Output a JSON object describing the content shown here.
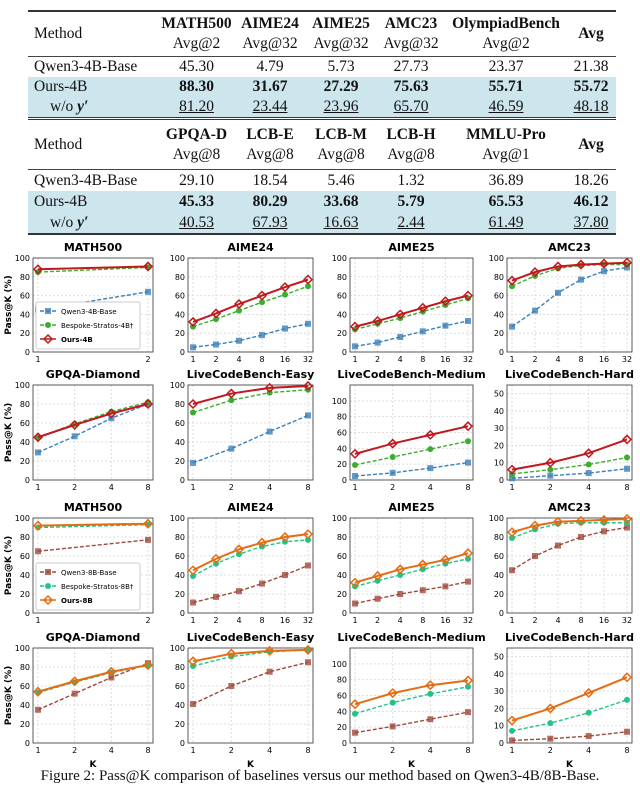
{
  "table1": {
    "method_label": "Method",
    "columns": [
      {
        "name": "MATH500",
        "metric": "Avg@2"
      },
      {
        "name": "AIME24",
        "metric": "Avg@32"
      },
      {
        "name": "AIME25",
        "metric": "Avg@32"
      },
      {
        "name": "AMC23",
        "metric": "Avg@32"
      },
      {
        "name": "OlympiadBench",
        "metric": "Avg@2"
      },
      {
        "name": "Avg",
        "metric": ""
      }
    ],
    "rows": [
      {
        "method": "Qwen3-4B-Base",
        "values": [
          "45.30",
          "4.79",
          "5.73",
          "27.73",
          "23.37",
          "21.38"
        ],
        "style": "plain"
      },
      {
        "method": "Ours-4B",
        "values": [
          "88.30",
          "31.67",
          "27.29",
          "75.63",
          "55.71",
          "55.72"
        ],
        "style": "bold"
      },
      {
        "method": "w/o",
        "method_var": "y′",
        "values": [
          "81.20",
          "23.44",
          "23.96",
          "65.70",
          "46.59",
          "48.18"
        ],
        "style": "underline"
      }
    ]
  },
  "table2": {
    "method_label": "Method",
    "columns": [
      {
        "name": "GPQA-D",
        "metric": "Avg@8"
      },
      {
        "name": "LCB-E",
        "metric": "Avg@8"
      },
      {
        "name": "LCB-M",
        "metric": "Avg@8"
      },
      {
        "name": "LCB-H",
        "metric": "Avg@8"
      },
      {
        "name": "MMLU-Pro",
        "metric": "Avg@1"
      },
      {
        "name": "Avg",
        "metric": ""
      }
    ],
    "rows": [
      {
        "method": "Qwen3-4B-Base",
        "values": [
          "29.10",
          "18.54",
          "5.46",
          "1.32",
          "36.89",
          "18.26"
        ],
        "style": "plain"
      },
      {
        "method": "Ours-4B",
        "values": [
          "45.33",
          "80.29",
          "33.68",
          "5.79",
          "65.53",
          "46.12"
        ],
        "style": "bold"
      },
      {
        "method": "w/o",
        "method_var": "y′",
        "values": [
          "40.53",
          "67.93",
          "16.63",
          "2.44",
          "61.49",
          "37.80"
        ],
        "style": "underline"
      }
    ]
  },
  "colors": {
    "qwen4b": "#3b80b8",
    "bespoke4b": "#3cae2e",
    "ours4b": "#c1181d",
    "qwen8b": "#a0483b",
    "bespoke8b": "#22c384",
    "ours8b": "#e46c12",
    "highlight": "#cde6ee"
  },
  "chart_data": [
    {
      "type": "line",
      "title": "MATH500",
      "ylabel": "Pass@K (%)",
      "xlabel": "",
      "x": [
        1,
        2
      ],
      "ylim": [
        0,
        100
      ],
      "yticks": [
        0,
        20,
        40,
        60,
        80,
        100
      ],
      "grid": true,
      "legend": "bottom-left",
      "series": [
        {
          "name": "Qwen3-4B-Base",
          "values": [
            45,
            64
          ]
        },
        {
          "name": "Bespoke-Stratos-4B†",
          "values": [
            85,
            90
          ]
        },
        {
          "name": "Ours-4B",
          "values": [
            88,
            91
          ]
        }
      ]
    },
    {
      "type": "line",
      "title": "AIME24",
      "x": [
        1,
        2,
        4,
        8,
        16,
        32
      ],
      "ylim": [
        0,
        100
      ],
      "yticks": [
        0,
        20,
        40,
        60,
        80,
        100
      ],
      "grid": true,
      "series": [
        {
          "values": [
            5,
            8,
            12,
            18,
            25,
            30
          ]
        },
        {
          "values": [
            27,
            35,
            44,
            53,
            61,
            70
          ]
        },
        {
          "values": [
            32,
            41,
            51,
            60,
            69,
            77
          ]
        }
      ]
    },
    {
      "type": "line",
      "title": "AIME25",
      "x": [
        1,
        2,
        4,
        8,
        16,
        32
      ],
      "ylim": [
        0,
        100
      ],
      "yticks": [
        0,
        20,
        40,
        60,
        80,
        100
      ],
      "grid": true,
      "series": [
        {
          "values": [
            6,
            10,
            16,
            22,
            28,
            33
          ]
        },
        {
          "values": [
            24,
            30,
            36,
            43,
            50,
            57
          ]
        },
        {
          "values": [
            27,
            33,
            40,
            47,
            54,
            60
          ]
        }
      ]
    },
    {
      "type": "line",
      "title": "AMC23",
      "x": [
        1,
        2,
        4,
        8,
        16,
        32
      ],
      "ylim": [
        0,
        100
      ],
      "yticks": [
        0,
        20,
        40,
        60,
        80,
        100
      ],
      "grid": true,
      "series": [
        {
          "values": [
            27,
            44,
            63,
            77,
            86,
            90
          ]
        },
        {
          "values": [
            70,
            81,
            89,
            92,
            93,
            93
          ]
        },
        {
          "values": [
            76,
            85,
            91,
            93,
            94,
            95
          ]
        }
      ]
    },
    {
      "type": "line",
      "title": "GPQA-Diamond",
      "ylabel": "Pass@K (%)",
      "x": [
        1,
        2,
        4,
        8
      ],
      "ylim": [
        0,
        100
      ],
      "yticks": [
        0,
        20,
        40,
        60,
        80,
        100
      ],
      "grid": true,
      "series": [
        {
          "values": [
            29,
            46,
            65,
            80
          ]
        },
        {
          "values": [
            45,
            59,
            72,
            82
          ]
        },
        {
          "values": [
            45,
            58,
            70,
            80
          ]
        }
      ]
    },
    {
      "type": "line",
      "title": "LiveCodeBench-Easy",
      "x": [
        1,
        2,
        4,
        8
      ],
      "ylim": [
        0,
        100
      ],
      "yticks": [
        0,
        20,
        40,
        60,
        80,
        100
      ],
      "grid": true,
      "series": [
        {
          "values": [
            18,
            33,
            51,
            68
          ]
        },
        {
          "values": [
            71,
            84,
            92,
            95
          ]
        },
        {
          "values": [
            80,
            91,
            97,
            99
          ]
        }
      ]
    },
    {
      "type": "line",
      "title": "LiveCodeBench-Medium",
      "x": [
        1,
        2,
        4,
        8
      ],
      "ylim": [
        0,
        120
      ],
      "yticks": [
        0,
        20,
        40,
        60,
        80,
        100
      ],
      "grid": true,
      "series": [
        {
          "values": [
            5,
            9,
            15,
            22
          ]
        },
        {
          "values": [
            19,
            29,
            39,
            49
          ]
        },
        {
          "values": [
            33,
            46,
            57,
            68
          ]
        }
      ]
    },
    {
      "type": "line",
      "title": "LiveCodeBench-Hard",
      "x": [
        1,
        2,
        4,
        8
      ],
      "ylim": [
        0,
        55
      ],
      "yticks": [
        0,
        10,
        20,
        30,
        40,
        50
      ],
      "grid": true,
      "series": [
        {
          "values": [
            1,
            2.5,
            4,
            6.5
          ]
        },
        {
          "values": [
            3.5,
            6,
            9,
            13
          ]
        },
        {
          "values": [
            6,
            10,
            15.5,
            23.5
          ]
        }
      ]
    },
    {
      "type": "line",
      "title": "MATH500",
      "ylabel": "Pass@K (%)",
      "x": [
        1,
        2
      ],
      "ylim": [
        0,
        100
      ],
      "yticks": [
        0,
        20,
        40,
        60,
        80,
        100
      ],
      "grid": true,
      "legend": "bottom-left",
      "series": [
        {
          "name": "Qwen3-8B-Base",
          "values": [
            65,
            77
          ]
        },
        {
          "name": "Bespoke-Stratos-8B†",
          "values": [
            90,
            93
          ]
        },
        {
          "name": "Ours-8B",
          "values": [
            92,
            94
          ]
        }
      ]
    },
    {
      "type": "line",
      "title": "AIME24",
      "x": [
        1,
        2,
        4,
        8,
        16,
        32
      ],
      "ylim": [
        0,
        100
      ],
      "yticks": [
        0,
        20,
        40,
        60,
        80,
        100
      ],
      "grid": true,
      "series": [
        {
          "values": [
            11,
            17,
            23,
            31,
            40,
            50
          ]
        },
        {
          "values": [
            39,
            52,
            62,
            70,
            75,
            77
          ]
        },
        {
          "values": [
            45,
            57,
            67,
            74,
            80,
            83
          ]
        }
      ]
    },
    {
      "type": "line",
      "title": "AIME25",
      "x": [
        1,
        2,
        4,
        8,
        16,
        32
      ],
      "ylim": [
        0,
        100
      ],
      "yticks": [
        0,
        20,
        40,
        60,
        80,
        100
      ],
      "grid": true,
      "series": [
        {
          "values": [
            10,
            15,
            20,
            24,
            28,
            33
          ]
        },
        {
          "values": [
            28,
            34,
            40,
            46,
            52,
            57
          ]
        },
        {
          "values": [
            32,
            39,
            46,
            51,
            56,
            63
          ]
        }
      ]
    },
    {
      "type": "line",
      "title": "AMC23",
      "x": [
        1,
        2,
        4,
        8,
        16,
        32
      ],
      "ylim": [
        0,
        100
      ],
      "yticks": [
        0,
        20,
        40,
        60,
        80,
        100
      ],
      "grid": true,
      "series": [
        {
          "values": [
            45,
            60,
            71,
            80,
            86,
            90
          ]
        },
        {
          "values": [
            79,
            88,
            94,
            95,
            95,
            95
          ]
        },
        {
          "values": [
            85,
            92,
            96,
            97,
            98,
            99
          ]
        }
      ]
    },
    {
      "type": "line",
      "title": "GPQA-Diamond",
      "ylabel": "Pass@K (%)",
      "xlabel": "K",
      "x": [
        1,
        2,
        4,
        8
      ],
      "ylim": [
        0,
        100
      ],
      "yticks": [
        0,
        20,
        40,
        60,
        80,
        100
      ],
      "grid": true,
      "series": [
        {
          "values": [
            35,
            52,
            69,
            84
          ]
        },
        {
          "values": [
            53,
            64,
            74,
            82
          ]
        },
        {
          "values": [
            54,
            65,
            75,
            82
          ]
        }
      ]
    },
    {
      "type": "line",
      "title": "LiveCodeBench-Easy",
      "xlabel": "K",
      "x": [
        1,
        2,
        4,
        8
      ],
      "ylim": [
        0,
        100
      ],
      "yticks": [
        0,
        20,
        40,
        60,
        80,
        100
      ],
      "grid": true,
      "series": [
        {
          "values": [
            41,
            60,
            75,
            85
          ]
        },
        {
          "values": [
            81,
            91,
            96,
            98
          ]
        },
        {
          "values": [
            86,
            94,
            97,
            98
          ]
        }
      ]
    },
    {
      "type": "line",
      "title": "LiveCodeBench-Medium",
      "xlabel": "K",
      "x": [
        1,
        2,
        4,
        8
      ],
      "ylim": [
        0,
        120
      ],
      "yticks": [
        0,
        20,
        40,
        60,
        80,
        100
      ],
      "grid": true,
      "series": [
        {
          "values": [
            13,
            21,
            30,
            39
          ]
        },
        {
          "values": [
            37,
            51,
            62,
            71
          ]
        },
        {
          "values": [
            49,
            63,
            73,
            79
          ]
        }
      ]
    },
    {
      "type": "line",
      "title": "LiveCodeBench-Hard",
      "xlabel": "K",
      "x": [
        1,
        2,
        4,
        8
      ],
      "ylim": [
        0,
        55
      ],
      "yticks": [
        0,
        10,
        20,
        30,
        40,
        50
      ],
      "grid": true,
      "series": [
        {
          "values": [
            1.5,
            2.5,
            4,
            6.5
          ]
        },
        {
          "values": [
            7,
            11.5,
            17.5,
            25
          ]
        },
        {
          "values": [
            13,
            20,
            29,
            38
          ]
        }
      ]
    }
  ],
  "caption": "Figure 2: Pass@K comparison of baselines versus our method based on Qwen3-4B/8B-Base."
}
